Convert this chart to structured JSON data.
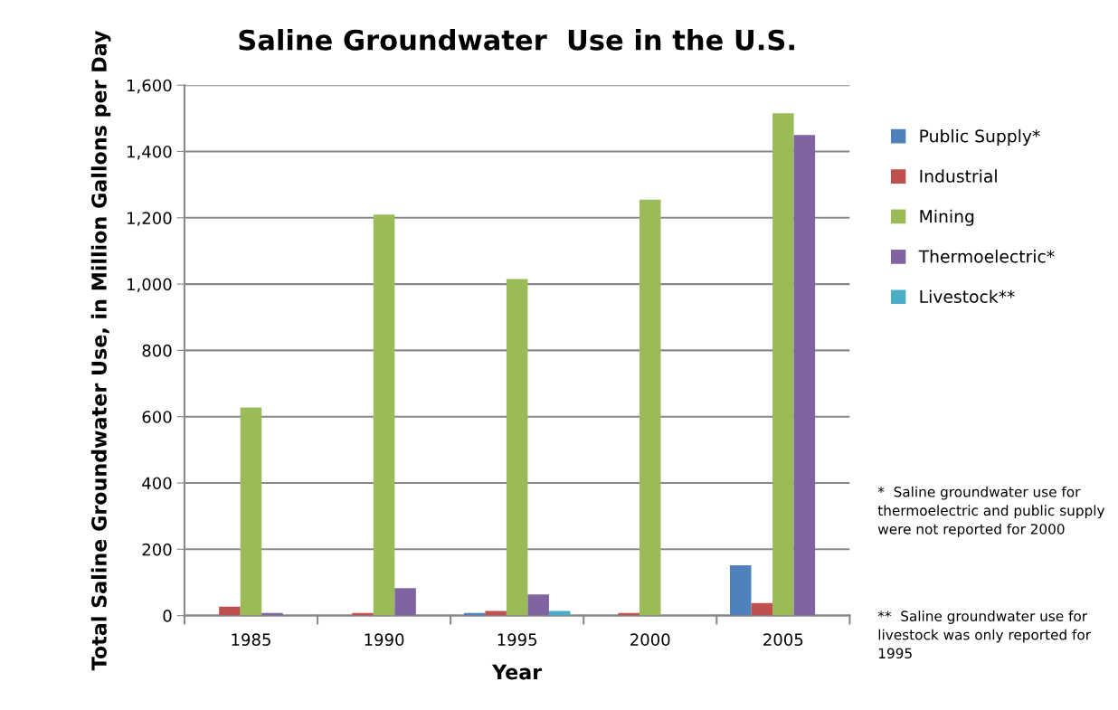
{
  "chart_data": {
    "type": "bar",
    "title": "Saline Groundwater  Use in the U.S.",
    "xlabel": "Year",
    "ylabel": "Total Saline Groundwater Use, in Million Gallons per Day",
    "categories": [
      "1985",
      "1990",
      "1995",
      "2000",
      "2005"
    ],
    "series": [
      {
        "name": "Public Supply*",
        "color": "#4f81bd",
        "values": [
          null,
          null,
          8,
          null,
          152
        ]
      },
      {
        "name": "Industrial",
        "color": "#c0504d",
        "values": [
          27,
          8,
          14,
          8,
          38
        ]
      },
      {
        "name": "Mining",
        "color": "#9bbb59",
        "values": [
          628,
          1210,
          1015,
          1255,
          1515
        ]
      },
      {
        "name": "Thermoelectric*",
        "color": "#8064a2",
        "values": [
          8,
          83,
          64,
          null,
          1450
        ]
      },
      {
        "name": "Livestock**",
        "color": "#4bacc6",
        "values": [
          null,
          null,
          14,
          null,
          null
        ]
      }
    ],
    "ylim": [
      0,
      1600
    ],
    "yticks": [
      {
        "value": 0,
        "label": "0"
      },
      {
        "value": 200,
        "label": "200"
      },
      {
        "value": 400,
        "label": "400"
      },
      {
        "value": 600,
        "label": "600"
      },
      {
        "value": 800,
        "label": "800"
      },
      {
        "value": 1000,
        "label": "1,000"
      },
      {
        "value": 1200,
        "label": "1,200"
      },
      {
        "value": 1400,
        "label": "1,400"
      },
      {
        "value": 1600,
        "label": "1,600"
      }
    ],
    "grid": "y",
    "legend": "right",
    "annotations": [
      "*  Saline groundwater use for thermoelectric and public supply were not reported for 2000",
      "**  Saline groundwater use for livestock was only reported for 1995"
    ]
  }
}
